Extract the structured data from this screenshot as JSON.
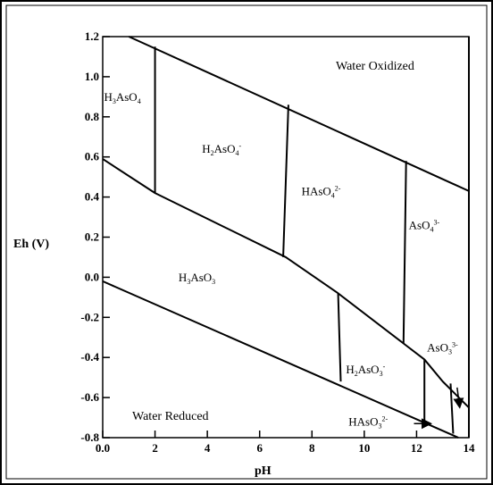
{
  "diagram": {
    "xlabel": "pH",
    "ylabel": "Eh (V)",
    "xlim": [
      0,
      14
    ],
    "ylim": [
      -0.8,
      1.2
    ],
    "x_ticks": [
      "0.0",
      "2",
      "4",
      "6",
      "8",
      "10",
      "12",
      "14"
    ],
    "y_ticks": [
      "-0.8",
      "-0.6",
      "-0.4",
      "-0.2",
      "0.0",
      "0.2",
      "0.4",
      "0.6",
      "0.8",
      "1.0",
      "1.2"
    ],
    "water_oxidized": "Water Oxidized",
    "water_reduced": "Water Reduced",
    "species": [
      {
        "id": "h3aso4",
        "base": "H",
        "sub1": "3",
        "mid": "AsO",
        "sub2": "4",
        "sup": "",
        "pH": 0.05,
        "eh": 0.88
      },
      {
        "id": "h2aso4",
        "base": "H",
        "sub1": "2",
        "mid": "AsO",
        "sub2": "4",
        "sup": "-",
        "pH": 3.8,
        "eh": 0.62
      },
      {
        "id": "haso4",
        "base": "HAsO",
        "sub1": "4",
        "mid": "",
        "sub2": "",
        "sup": "2-",
        "pH": 7.6,
        "eh": 0.41
      },
      {
        "id": "aso4",
        "base": "AsO",
        "sub1": "4",
        "mid": "",
        "sub2": "",
        "sup": "3-",
        "pH": 11.7,
        "eh": 0.24
      },
      {
        "id": "h3aso3",
        "base": "H",
        "sub1": "3",
        "mid": "AsO",
        "sub2": "3",
        "sup": "",
        "pH": 2.9,
        "eh": -0.02
      },
      {
        "id": "h2aso3",
        "base": "H",
        "sub1": "2",
        "mid": "AsO",
        "sub2": "3",
        "sup": "-",
        "pH": 9.3,
        "eh": -0.48
      },
      {
        "id": "aso3",
        "base": "AsO",
        "sub1": "3",
        "mid": "",
        "sub2": "",
        "sup": "3-",
        "pH": 12.4,
        "eh": -0.37
      },
      {
        "id": "haso3",
        "base": "HAsO",
        "sub1": "3",
        "mid": "",
        "sub2": "",
        "sup": "2-",
        "pH": 9.4,
        "eh": -0.74
      }
    ],
    "boundaries": [
      {
        "name": "water-oxidized-line",
        "points": [
          [
            1.0,
            1.2
          ],
          [
            14,
            0.43
          ]
        ]
      },
      {
        "name": "water-reduced-line",
        "points": [
          [
            0,
            -0.02
          ],
          [
            13.6,
            -0.8
          ]
        ]
      },
      {
        "name": "as5-as3-boundary",
        "points": [
          [
            0,
            0.59
          ],
          [
            2,
            0.42
          ],
          [
            7,
            0.1
          ],
          [
            9,
            -0.08
          ],
          [
            11.5,
            -0.33
          ],
          [
            12.3,
            -0.41
          ],
          [
            13.0,
            -0.52
          ],
          [
            14,
            -0.65
          ]
        ]
      },
      {
        "name": "h3aso4-h2aso4-boundary",
        "points": [
          [
            2,
            1.15
          ],
          [
            2,
            0.42
          ]
        ]
      },
      {
        "name": "h2aso4-haso4-boundary",
        "points": [
          [
            7.1,
            0.86
          ],
          [
            6.9,
            0.1
          ]
        ]
      },
      {
        "name": "haso4-aso4-boundary",
        "points": [
          [
            11.6,
            0.58
          ],
          [
            11.5,
            -0.33
          ]
        ]
      },
      {
        "name": "h3aso3-h2aso3-boundary",
        "points": [
          [
            9.0,
            -0.08
          ],
          [
            9.1,
            -0.52
          ]
        ]
      },
      {
        "name": "h2aso3-haso3-boundary",
        "points": [
          [
            12.3,
            -0.41
          ],
          [
            12.3,
            -0.73
          ]
        ]
      },
      {
        "name": "haso3-aso3-boundary",
        "points": [
          [
            13.3,
            -0.53
          ],
          [
            13.4,
            -0.78
          ]
        ]
      },
      {
        "name": "right-edge-boundary",
        "points": [
          [
            14,
            1.2
          ],
          [
            14,
            -0.8
          ]
        ]
      }
    ],
    "arrows": [
      {
        "name": "haso3-arrow",
        "from": [
          11.9,
          -0.73
        ],
        "to": [
          12.55,
          -0.73
        ]
      },
      {
        "name": "aso3-arrow",
        "from": [
          13.55,
          -0.55
        ],
        "to": [
          13.65,
          -0.65
        ]
      }
    ]
  }
}
